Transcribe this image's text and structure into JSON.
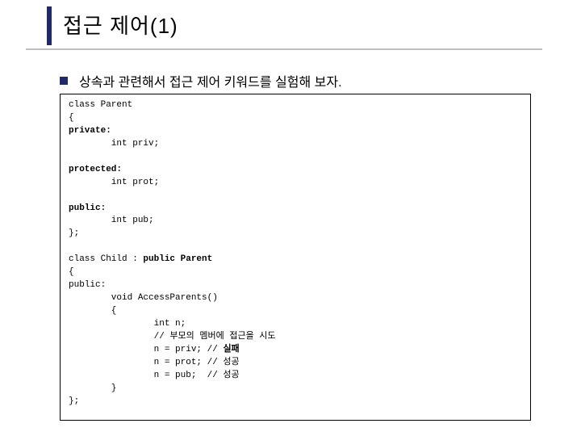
{
  "title_main": "접근 제어",
  "title_suffix": "(1)",
  "subtitle": "상속과 관련해서 접근 제어 키워드를 실험해 보자.",
  "code": {
    "l1": "class Parent",
    "l2": "{",
    "l3": "private:",
    "l4": "        int priv;",
    "l5": "",
    "l6": "protected:",
    "l7": "        int prot;",
    "l8": "",
    "l9": "public:",
    "l10": "        int pub;",
    "l11": "};",
    "l12": "",
    "l13_a": "class Child : ",
    "l13_b": "public Parent",
    "l14": "{",
    "l15": "public:",
    "l16": "        void AccessParents()",
    "l17": "        {",
    "l18": "                int n;",
    "l19": "                // 부모의 멤버에 접근을 시도",
    "l20_a": "                n = priv; // ",
    "l20_b": "실패",
    "l21": "                n = prot; // 성공",
    "l22": "                n = pub;  // 성공",
    "l23": "        }",
    "l24": "};"
  },
  "colors": {
    "accent": "#1f2a6b",
    "underline": "#bfbfbf",
    "text": "#000000",
    "background": "#ffffff"
  }
}
